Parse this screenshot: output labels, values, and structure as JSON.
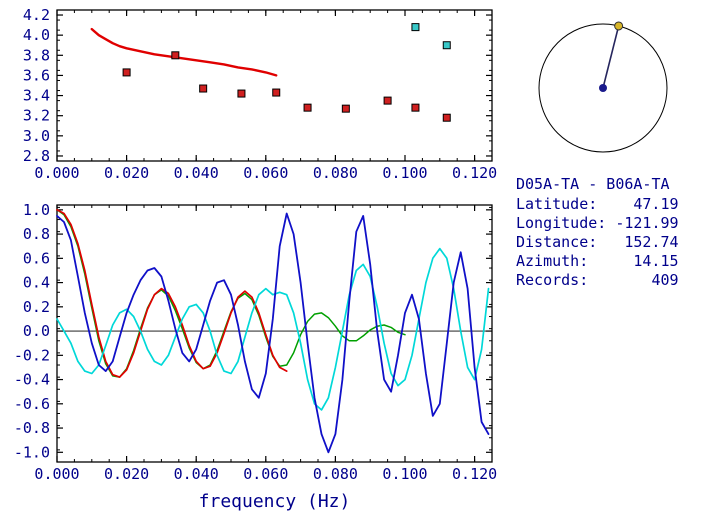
{
  "style": {
    "background": "#ffffff",
    "text_color": "#00008b",
    "axis_color": "#000000"
  },
  "info_panel": {
    "station_pair": "D05A-TA - B06A-TA",
    "fields": [
      {
        "label": "Latitude:",
        "value": "47.19"
      },
      {
        "label": "Longitude:",
        "value": "-121.99"
      },
      {
        "label": "Distance:",
        "value": "152.74"
      },
      {
        "label": "Azimuth:",
        "value": "14.15"
      },
      {
        "label": "Records:",
        "value": "409"
      }
    ]
  },
  "azimuth_dial": {
    "azimuth_deg": 14.15,
    "circle_color": "#000000",
    "needle_color": "#26265e",
    "center_dot_color": "#1a1a8c",
    "end_dot_color": "#d8b628"
  },
  "chart_data": [
    {
      "id": "top",
      "type": "scatter",
      "title": "",
      "xlabel": "",
      "ylabel": "",
      "xlim": [
        0,
        0.125
      ],
      "ylim": [
        2.75,
        4.25
      ],
      "grid": false,
      "legend": "none",
      "xminor_step": 0.005,
      "yminor_step": 0.1,
      "xticks": {
        "values": [
          0,
          0.02,
          0.04,
          0.06,
          0.08,
          0.1,
          0.12
        ],
        "labels": [
          "0.000",
          "0.020",
          "0.040",
          "0.060",
          "0.080",
          "0.100",
          "0.120"
        ]
      },
      "yticks": {
        "values": [
          2.8,
          3.0,
          3.2,
          3.4,
          3.6,
          3.8,
          4.0,
          4.2
        ],
        "labels": [
          "2.8",
          "3.0",
          "3.2",
          "3.4",
          "3.6",
          "3.8",
          "4.0",
          "4.2"
        ]
      },
      "series": [
        {
          "name": "reference-dispersion-curve",
          "kind": "line",
          "color": "#e00000",
          "width": 2.4,
          "points": [
            [
              0.01,
              4.06
            ],
            [
              0.012,
              4.0
            ],
            [
              0.014,
              3.96
            ],
            [
              0.016,
              3.92
            ],
            [
              0.018,
              3.89
            ],
            [
              0.02,
              3.87
            ],
            [
              0.024,
              3.84
            ],
            [
              0.028,
              3.81
            ],
            [
              0.032,
              3.79
            ],
            [
              0.036,
              3.77
            ],
            [
              0.04,
              3.75
            ],
            [
              0.044,
              3.73
            ],
            [
              0.048,
              3.71
            ],
            [
              0.052,
              3.68
            ],
            [
              0.056,
              3.66
            ],
            [
              0.06,
              3.63
            ],
            [
              0.063,
              3.6
            ]
          ]
        },
        {
          "name": "velocity-measurements-red",
          "kind": "squares",
          "fill": "#d02020",
          "edge": "#000000",
          "size": 7,
          "points": [
            [
              0.02,
              3.63
            ],
            [
              0.034,
              3.8
            ],
            [
              0.042,
              3.47
            ],
            [
              0.053,
              3.42
            ],
            [
              0.063,
              3.43
            ],
            [
              0.072,
              3.28
            ],
            [
              0.083,
              3.27
            ],
            [
              0.095,
              3.35
            ],
            [
              0.103,
              3.28
            ],
            [
              0.112,
              3.18
            ]
          ]
        },
        {
          "name": "velocity-measurements-cyan",
          "kind": "squares",
          "fill": "#38c8c8",
          "edge": "#000000",
          "size": 7,
          "points": [
            [
              0.103,
              4.08
            ],
            [
              0.112,
              3.9
            ]
          ]
        }
      ]
    },
    {
      "id": "bottom",
      "type": "line",
      "title": "",
      "xlabel": "frequency (Hz)",
      "ylabel": "",
      "xlim": [
        0,
        0.125
      ],
      "ylim": [
        -1.08,
        1.04
      ],
      "grid": false,
      "legend": "none",
      "zero_line": true,
      "xminor_step": 0.005,
      "yminor_step": 0.1,
      "xticks": {
        "values": [
          0,
          0.02,
          0.04,
          0.06,
          0.08,
          0.1,
          0.12
        ],
        "labels": [
          "0.000",
          "0.020",
          "0.040",
          "0.060",
          "0.080",
          "0.100",
          "0.120"
        ]
      },
      "yticks": {
        "values": [
          -1.0,
          -0.8,
          -0.6,
          -0.4,
          -0.2,
          0.0,
          0.2,
          0.4,
          0.6,
          0.8,
          1.0
        ],
        "labels": [
          "-1.0",
          "-0.8",
          "-0.6",
          "-0.4",
          "-0.2",
          "0.0",
          "0.2",
          "0.4",
          "0.6",
          "0.8",
          "1.0"
        ]
      },
      "series": [
        {
          "name": "correlation-trace-green",
          "kind": "wave",
          "color": "#00a000",
          "width": 1.5,
          "x0": 0,
          "dx": 0.002,
          "y": [
            1.0,
            0.96,
            0.86,
            0.7,
            0.47,
            0.19,
            -0.08,
            -0.27,
            -0.37,
            -0.38,
            -0.31,
            -0.16,
            0.02,
            0.19,
            0.3,
            0.34,
            0.29,
            0.17,
            0.02,
            -0.14,
            -0.26,
            -0.31,
            -0.28,
            -0.16,
            0.0,
            0.16,
            0.27,
            0.31,
            0.26,
            0.13,
            -0.05,
            -0.21,
            -0.29,
            -0.28,
            -0.18,
            -0.03,
            0.08,
            0.14,
            0.15,
            0.11,
            0.04,
            -0.04,
            -0.08,
            -0.08,
            -0.04,
            0.01,
            0.04,
            0.05,
            0.03,
            -0.01,
            -0.03
          ]
        },
        {
          "name": "correlation-trace-red",
          "kind": "wave",
          "color": "#e00000",
          "width": 1.7,
          "x0": 0,
          "dx": 0.002,
          "y": [
            1.0,
            0.97,
            0.88,
            0.72,
            0.5,
            0.22,
            -0.05,
            -0.25,
            -0.36,
            -0.38,
            -0.32,
            -0.18,
            0.0,
            0.18,
            0.3,
            0.35,
            0.31,
            0.2,
            0.05,
            -0.12,
            -0.25,
            -0.31,
            -0.29,
            -0.18,
            -0.02,
            0.15,
            0.28,
            0.33,
            0.28,
            0.15,
            -0.03,
            -0.2,
            -0.3,
            -0.33
          ]
        },
        {
          "name": "correlation-trace-cyan",
          "kind": "wave",
          "color": "#00d8d8",
          "width": 1.7,
          "x0": 0,
          "dx": 0.002,
          "y": [
            0.1,
            0.0,
            -0.1,
            -0.25,
            -0.33,
            -0.35,
            -0.28,
            -0.12,
            0.05,
            0.15,
            0.18,
            0.12,
            0.0,
            -0.15,
            -0.25,
            -0.28,
            -0.2,
            -0.05,
            0.1,
            0.2,
            0.22,
            0.15,
            0.0,
            -0.2,
            -0.33,
            -0.35,
            -0.25,
            -0.05,
            0.15,
            0.3,
            0.35,
            0.3,
            0.32,
            0.3,
            0.15,
            -0.1,
            -0.4,
            -0.6,
            -0.65,
            -0.55,
            -0.3,
            0.0,
            0.3,
            0.5,
            0.55,
            0.45,
            0.2,
            -0.1,
            -0.35,
            -0.45,
            -0.4,
            -0.2,
            0.1,
            0.4,
            0.6,
            0.68,
            0.6,
            0.35,
            0.0,
            -0.3,
            -0.4,
            -0.15,
            0.35
          ]
        },
        {
          "name": "correlation-trace-blue",
          "kind": "wave",
          "color": "#1010c8",
          "width": 1.8,
          "x0": 0,
          "dx": 0.002,
          "y": [
            0.95,
            0.9,
            0.75,
            0.45,
            0.15,
            -0.1,
            -0.28,
            -0.33,
            -0.25,
            -0.05,
            0.15,
            0.3,
            0.42,
            0.5,
            0.52,
            0.45,
            0.25,
            0.02,
            -0.18,
            -0.25,
            -0.15,
            0.05,
            0.25,
            0.4,
            0.42,
            0.3,
            0.05,
            -0.25,
            -0.48,
            -0.55,
            -0.35,
            0.1,
            0.7,
            0.97,
            0.8,
            0.4,
            -0.1,
            -0.55,
            -0.85,
            -1.0,
            -0.85,
            -0.4,
            0.25,
            0.82,
            0.95,
            0.55,
            0.0,
            -0.4,
            -0.5,
            -0.2,
            0.15,
            0.3,
            0.1,
            -0.35,
            -0.7,
            -0.6,
            -0.1,
            0.4,
            0.65,
            0.35,
            -0.3,
            -0.75,
            -0.85
          ]
        }
      ]
    }
  ]
}
